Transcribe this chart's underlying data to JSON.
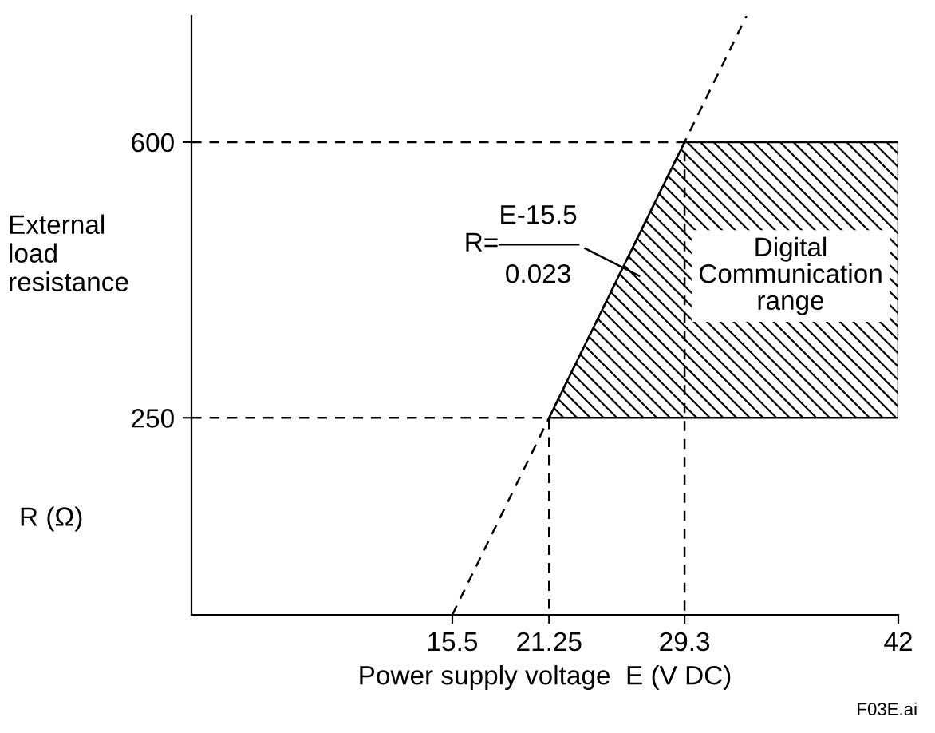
{
  "chart_data": {
    "type": "line",
    "xlabel": "Power supply voltage  E (V DC)",
    "ylabel": "External\nload\nresistance",
    "annotations": [
      "R (Ω)",
      "R=",
      "E-15.5",
      "0.023",
      "Digital\nCommunication\nrange",
      "F03E.ai"
    ],
    "xlim": [
      0,
      42
    ],
    "ylim": [
      0,
      760
    ],
    "xticks": [
      15.5,
      21.25,
      29.3,
      42
    ],
    "yticks": [
      250,
      600
    ],
    "grid": false,
    "legend": false,
    "series": [
      {
        "type": "line",
        "color": "#000000",
        "line_style": "dashed",
        "x": [
          15.5,
          32.98
        ],
        "values": [
          0,
          760
        ]
      },
      {
        "type": "line",
        "color": "#000000",
        "line_style": "dashed",
        "x": [
          0,
          21.25,
          21.25
        ],
        "values": [
          250,
          250,
          0
        ]
      },
      {
        "color": "#000000",
        "line_style": "dashed",
        "x": [
          0,
          29.3,
          29.3
        ],
        "values": [
          600,
          600,
          0
        ]
      },
      {
        "type": "area",
        "color": "#000000",
        "x": [
          21.25,
          29.3,
          42,
          42,
          21.25
        ],
        "values": [
          250,
          600,
          600,
          250,
          250
        ]
      }
    ]
  }
}
